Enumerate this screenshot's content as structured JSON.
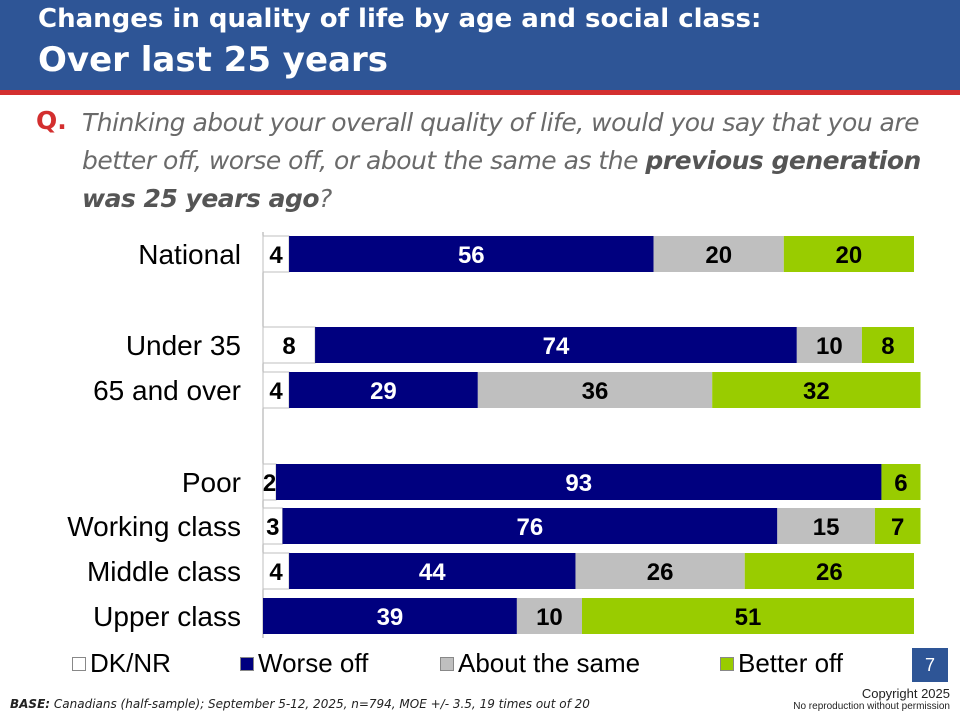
{
  "header": {
    "title_line1": "Changes in quality of life by age and social class:",
    "title_line2": "Over last 25 years"
  },
  "question": {
    "marker": "Q.",
    "text_before": "Thinking about your overall quality of life, would you say that you are better off, worse off, or about the same as the ",
    "text_emphasis": "previous generation was 25 years ago",
    "text_after": "?"
  },
  "colors": {
    "header_bg": "#2e5596",
    "header_rule": "#d32f2f",
    "dk_nr": "#ffffff",
    "worse_off": "#00007f",
    "about_same": "#bfbfbf",
    "better_off": "#99cc00"
  },
  "chart_data": {
    "type": "bar",
    "orientation": "horizontal",
    "stacked": true,
    "percent_scale": [
      0,
      100
    ],
    "categories": [
      "National",
      "Under 35",
      "65 and over",
      "Poor",
      "Working class",
      "Middle class",
      "Upper class"
    ],
    "series": [
      {
        "name": "DK/NR",
        "values": [
          4,
          8,
          4,
          2,
          3,
          4,
          0
        ]
      },
      {
        "name": "Worse off",
        "values": [
          56,
          74,
          29,
          93,
          76,
          44,
          39
        ]
      },
      {
        "name": "About the same",
        "values": [
          20,
          10,
          36,
          0,
          15,
          26,
          10
        ]
      },
      {
        "name": "Better off",
        "values": [
          20,
          8,
          32,
          6,
          7,
          26,
          51
        ]
      }
    ],
    "legend_position": "bottom"
  },
  "legend": {
    "items": [
      "DK/NR",
      "Worse off",
      "About the same",
      "Better off"
    ]
  },
  "footer": {
    "base_label": "BASE:",
    "base_text": " Canadians (half-sample); September 5-12, 2025, n=794, MOE +/- 3.5, 19 times out of 20",
    "page_number": "7",
    "copyright": "Copyright 2025",
    "reproduction": "No reproduction without permission"
  }
}
